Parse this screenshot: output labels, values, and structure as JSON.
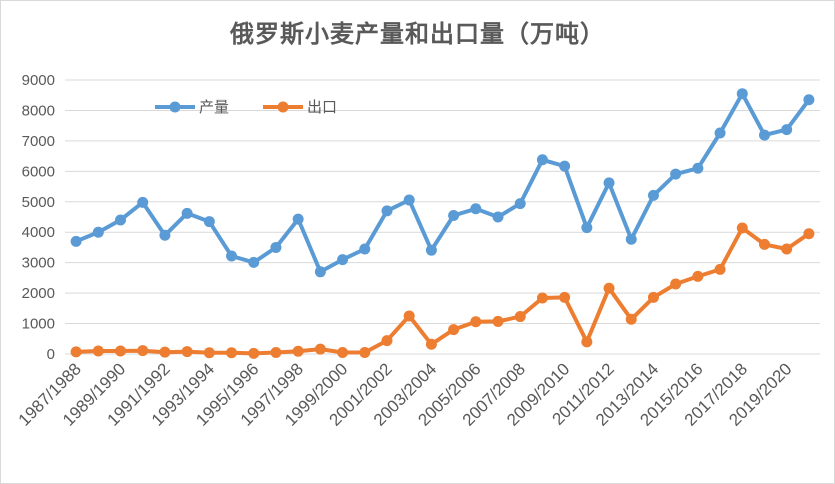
{
  "chart_data": {
    "type": "line",
    "title": "俄罗斯小麦产量和出口量（万吨）",
    "ylim": [
      0,
      9000
    ],
    "yticks": [
      0,
      1000,
      2000,
      3000,
      4000,
      5000,
      6000,
      7000,
      8000,
      9000
    ],
    "grid": true,
    "legend_position": "top-left",
    "x": [
      "1987/1988",
      "1988/1989",
      "1989/1990",
      "1990/1991",
      "1991/1992",
      "1992/1993",
      "1993/1994",
      "1994/1995",
      "1995/1996",
      "1996/1997",
      "1997/1998",
      "1998/1999",
      "1999/2000",
      "2000/2001",
      "2001/2002",
      "2002/2003",
      "2003/2004",
      "2004/2005",
      "2005/2006",
      "2006/2007",
      "2007/2008",
      "2008/2009",
      "2009/2010",
      "2010/2011",
      "2011/2012",
      "2012/2013",
      "2013/2014",
      "2014/2015",
      "2015/2016",
      "2016/2017",
      "2017/2018",
      "2018/2019",
      "2019/2020",
      "2020/2021"
    ],
    "x_tick_labels": [
      "1987/1988",
      "1989/1990",
      "1991/1992",
      "1993/1994",
      "1995/1996",
      "1997/1998",
      "1999/2000",
      "2001/2002",
      "2003/2004",
      "2005/2006",
      "2007/2008",
      "2009/2010",
      "2011/2012",
      "2013/2014",
      "2015/2016",
      "2017/2018",
      "2019/2020"
    ],
    "series": [
      {
        "name": "产量",
        "color": "#5b9bd5",
        "values": [
          3700,
          4000,
          4400,
          4980,
          3900,
          4620,
          4350,
          3220,
          3010,
          3500,
          4430,
          2700,
          3100,
          3450,
          4700,
          5060,
          3410,
          4550,
          4770,
          4500,
          4940,
          6380,
          6170,
          4150,
          5620,
          3770,
          5210,
          5910,
          6100,
          7260,
          8550,
          7190,
          7370,
          8350
        ]
      },
      {
        "name": "出口",
        "color": "#ed7d31",
        "values": [
          70,
          100,
          100,
          110,
          60,
          80,
          40,
          40,
          20,
          50,
          90,
          160,
          50,
          50,
          440,
          1250,
          320,
          800,
          1060,
          1070,
          1230,
          1840,
          1860,
          400,
          2160,
          1140,
          1860,
          2300,
          2550,
          2780,
          4140,
          3600,
          3450,
          3950
        ]
      }
    ]
  }
}
